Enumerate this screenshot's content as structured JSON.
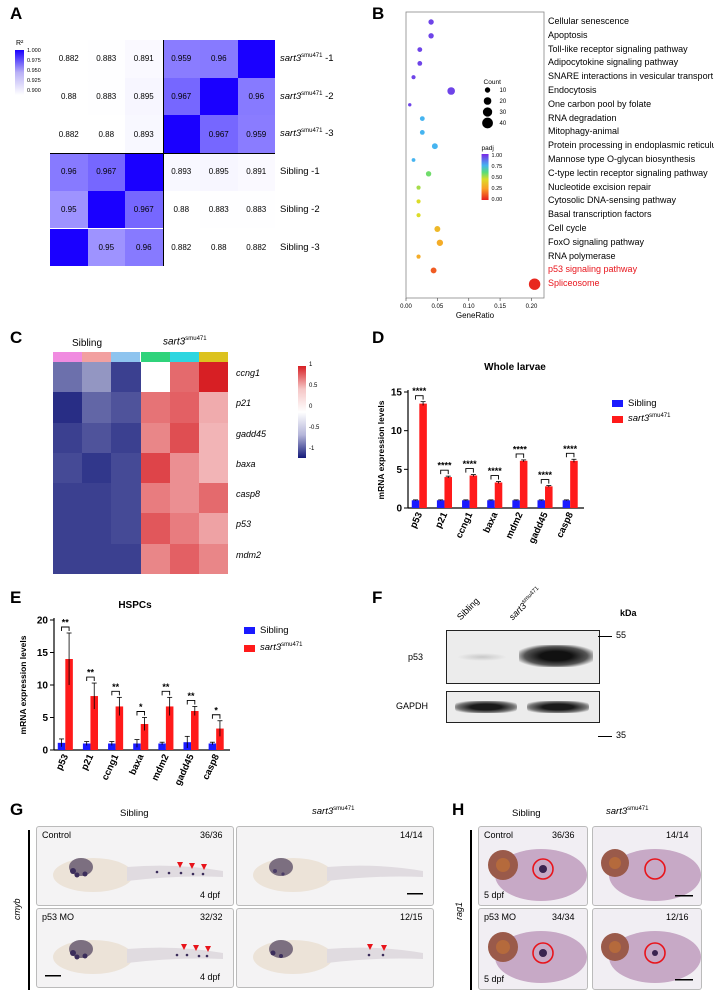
{
  "panels": {
    "A": "A",
    "B": "B",
    "C": "C",
    "D": "D",
    "E": "E",
    "F": "F",
    "G": "G",
    "H": "H"
  },
  "corr": {
    "legend_title": "R²",
    "legend_ticks": [
      "1.000",
      "0.975",
      "0.950",
      "0.925",
      "0.900"
    ],
    "matrix": [
      [
        "0.882",
        "0.883",
        "0.891",
        "0.959",
        "0.96",
        ""
      ],
      [
        "0.88",
        "0.883",
        "0.895",
        "0.967",
        "",
        "0.96"
      ],
      [
        "0.882",
        "0.88",
        "0.893",
        "",
        "0.967",
        "0.959"
      ],
      [
        "0.96",
        "0.967",
        "",
        "0.893",
        "0.895",
        "0.891"
      ],
      [
        "0.95",
        "",
        "0.967",
        "0.88",
        "0.883",
        "0.883"
      ],
      [
        "",
        "0.95",
        "0.96",
        "0.882",
        "0.88",
        "0.882"
      ]
    ],
    "values": [
      [
        0.882,
        0.883,
        0.891,
        0.959,
        0.96,
        1.0
      ],
      [
        0.88,
        0.883,
        0.895,
        0.967,
        1.0,
        0.96
      ],
      [
        0.882,
        0.88,
        0.893,
        1.0,
        0.967,
        0.959
      ],
      [
        0.96,
        0.967,
        1.0,
        0.893,
        0.895,
        0.891
      ],
      [
        0.95,
        1.0,
        0.967,
        0.88,
        0.883,
        0.883
      ],
      [
        1.0,
        0.95,
        0.96,
        0.882,
        0.88,
        0.882
      ]
    ],
    "rows": [
      {
        "gene": "sart3",
        "sup": "smu471",
        "suffix": " -1"
      },
      {
        "gene": "sart3",
        "sup": "smu471",
        "suffix": " -2"
      },
      {
        "gene": "sart3",
        "sup": "smu471",
        "suffix": " -3"
      },
      {
        "gene": "Sibling -1",
        "sup": "",
        "suffix": ""
      },
      {
        "gene": "Sibling -2",
        "sup": "",
        "suffix": ""
      },
      {
        "gene": "Sibling -3",
        "sup": "",
        "suffix": ""
      }
    ]
  },
  "chart_data": [
    {
      "type": "scatter",
      "panel": "B",
      "xlabel": "GeneRatio",
      "xticks": [
        "0.00",
        "0.05",
        "0.10",
        "0.15",
        "0.20"
      ],
      "xlim": [
        0,
        0.22
      ],
      "terms": [
        "Cellular senescence",
        "Apoptosis",
        "Toll-like receptor signaling pathway",
        "Adipocytokine signaling pathway",
        "SNARE interactions in vesicular transport",
        "Endocytosis",
        "One carbon pool by folate",
        "RNA degradation",
        "Mitophagy-animal",
        "Protein processing in endoplasmic reticulum",
        "Mannose type O-glycan biosynthesis",
        "C-type lectin receptor signaling pathway",
        "Nucleotide excision repair",
        "Cytosolic DNA-sensing pathway",
        "Basal transcription factors",
        "Cell cycle",
        "FoxO signaling pathway",
        "RNA polymerase",
        "p53 signaling pathway",
        "Spliceosome"
      ],
      "highlight": [
        "p53 signaling pathway",
        "Spliceosome"
      ],
      "generatio": [
        0.04,
        0.04,
        0.022,
        0.022,
        0.012,
        0.072,
        0.006,
        0.026,
        0.026,
        0.046,
        0.012,
        0.036,
        0.02,
        0.02,
        0.02,
        0.05,
        0.054,
        0.02,
        0.044,
        0.205
      ],
      "count": [
        10,
        10,
        8,
        8,
        6,
        20,
        4,
        8,
        8,
        12,
        5,
        10,
        6,
        6,
        6,
        12,
        14,
        6,
        12,
        45
      ],
      "padj": [
        0.95,
        0.95,
        0.95,
        0.95,
        0.95,
        0.95,
        0.95,
        0.75,
        0.75,
        0.75,
        0.75,
        0.6,
        0.55,
        0.5,
        0.5,
        0.35,
        0.3,
        0.3,
        0.12,
        0.02
      ],
      "size_legend": {
        "title": "Count",
        "values": [
          "10",
          "20",
          "30",
          "40"
        ]
      },
      "color_legend": {
        "title": "padj",
        "ticks": [
          "1.00",
          "0.75",
          "0.50",
          "0.25",
          "0.00"
        ]
      }
    },
    {
      "type": "heatmap",
      "panel": "C",
      "rows": [
        "ccng1",
        "p21",
        "gadd45",
        "baxa",
        "casp8",
        "p53",
        "mdm2"
      ],
      "groups": [
        "Sibling",
        "sart3"
      ],
      "group_sup": "smu471",
      "legend_ticks": [
        "1",
        "0.5",
        "0",
        "-0.5",
        "-1"
      ],
      "values": [
        [
          -0.75,
          -0.55,
          -1.0,
          0.0,
          0.8,
          1.2
        ],
        [
          -1.1,
          -0.8,
          -0.9,
          0.75,
          0.85,
          0.45
        ],
        [
          -1.0,
          -0.9,
          -1.0,
          0.65,
          0.95,
          0.4
        ],
        [
          -0.95,
          -1.05,
          -0.95,
          1.0,
          0.6,
          0.4
        ],
        [
          -1.0,
          -1.0,
          -0.95,
          0.7,
          0.6,
          0.8
        ],
        [
          -1.0,
          -1.0,
          -0.95,
          0.9,
          0.7,
          0.5
        ],
        [
          -1.0,
          -1.0,
          -1.0,
          0.65,
          0.85,
          0.65
        ]
      ]
    },
    {
      "type": "bar",
      "panel": "D",
      "title": "Whole larvae",
      "ylabel": "mRNA expression levels",
      "ylim": [
        0,
        15
      ],
      "yticks": [
        "0",
        "5",
        "10",
        "15"
      ],
      "categories": [
        "p53",
        "p21",
        "ccng1",
        "baxa",
        "mdm2",
        "gadd45",
        "casp8"
      ],
      "series": [
        {
          "name": "Sibling",
          "values": [
            1,
            1,
            1,
            1,
            1,
            1,
            1
          ],
          "err": [
            0.05,
            0.05,
            0.05,
            0.05,
            0.05,
            0.05,
            0.05
          ]
        },
        {
          "name": "sart3",
          "sup": "smu471",
          "values": [
            13.5,
            4.0,
            4.2,
            3.3,
            6.1,
            2.8,
            6.1
          ],
          "err": [
            0.25,
            0.12,
            0.12,
            0.12,
            0.12,
            0.1,
            0.2
          ]
        }
      ],
      "sig": [
        "****",
        "****",
        "****",
        "****",
        "****",
        "****",
        "****"
      ]
    },
    {
      "type": "bar",
      "panel": "E",
      "title": "HSPCs",
      "ylabel": "mRNA expression levels",
      "ylim": [
        0,
        20
      ],
      "yticks": [
        "0",
        "5",
        "10",
        "15",
        "20"
      ],
      "categories": [
        "p53",
        "p21",
        "ccng1",
        "baxa",
        "mdm2",
        "gadd45",
        "casp8"
      ],
      "series": [
        {
          "name": "Sibling",
          "values": [
            1.1,
            1.0,
            1.0,
            1.0,
            1.0,
            1.2,
            1.0
          ],
          "err": [
            0.6,
            0.3,
            0.3,
            0.6,
            0.2,
            0.9,
            0.2
          ]
        },
        {
          "name": "sart3",
          "sup": "smu471",
          "values": [
            14,
            8.3,
            6.7,
            4.0,
            6.7,
            6.0,
            3.3
          ],
          "err": [
            4.0,
            2.0,
            1.4,
            1.0,
            1.4,
            0.7,
            1.2
          ]
        }
      ],
      "sig": [
        "**",
        "**",
        "**",
        "*",
        "**",
        "**",
        "*"
      ]
    }
  ],
  "legendD": {
    "a": "Sibling",
    "b": "sart3",
    "b_sup": "smu471"
  },
  "legendE": {
    "a": "Sibling",
    "b": "sart3",
    "b_sup": "smu471"
  },
  "blot": {
    "lane1": "Sibling",
    "lane2": "sart3",
    "lane2_sup": "smu471",
    "kda": "kDa",
    "m55": "55",
    "m35": "35",
    "p53": "p53",
    "gapdh": "GAPDH"
  },
  "wish_g": {
    "col1": "Sibling",
    "col2": "sart3",
    "col2_sup": "smu471",
    "side": "cmyb",
    "tl1": "Control",
    "tr1": "36/36",
    "tr2": "14/14",
    "bl1": "p53 MO",
    "br1": "32/32",
    "br2": "12/15",
    "age1": "4 dpf",
    "age2": "4 dpf"
  },
  "wish_h": {
    "col1": "Sibling",
    "col2": "sart3",
    "col2_sup": "smu471",
    "side": "rag1",
    "tl1": "Control",
    "tr1": "36/36",
    "tr2": "14/14",
    "bl1": "p53 MO",
    "br1": "34/34",
    "br2": "12/16",
    "age1": "5 dpf",
    "age2": "5 dpf"
  },
  "colors": {
    "sibling": "#1a1aff",
    "mutant": "#ff1a1a",
    "red_text": "#e8141b"
  }
}
